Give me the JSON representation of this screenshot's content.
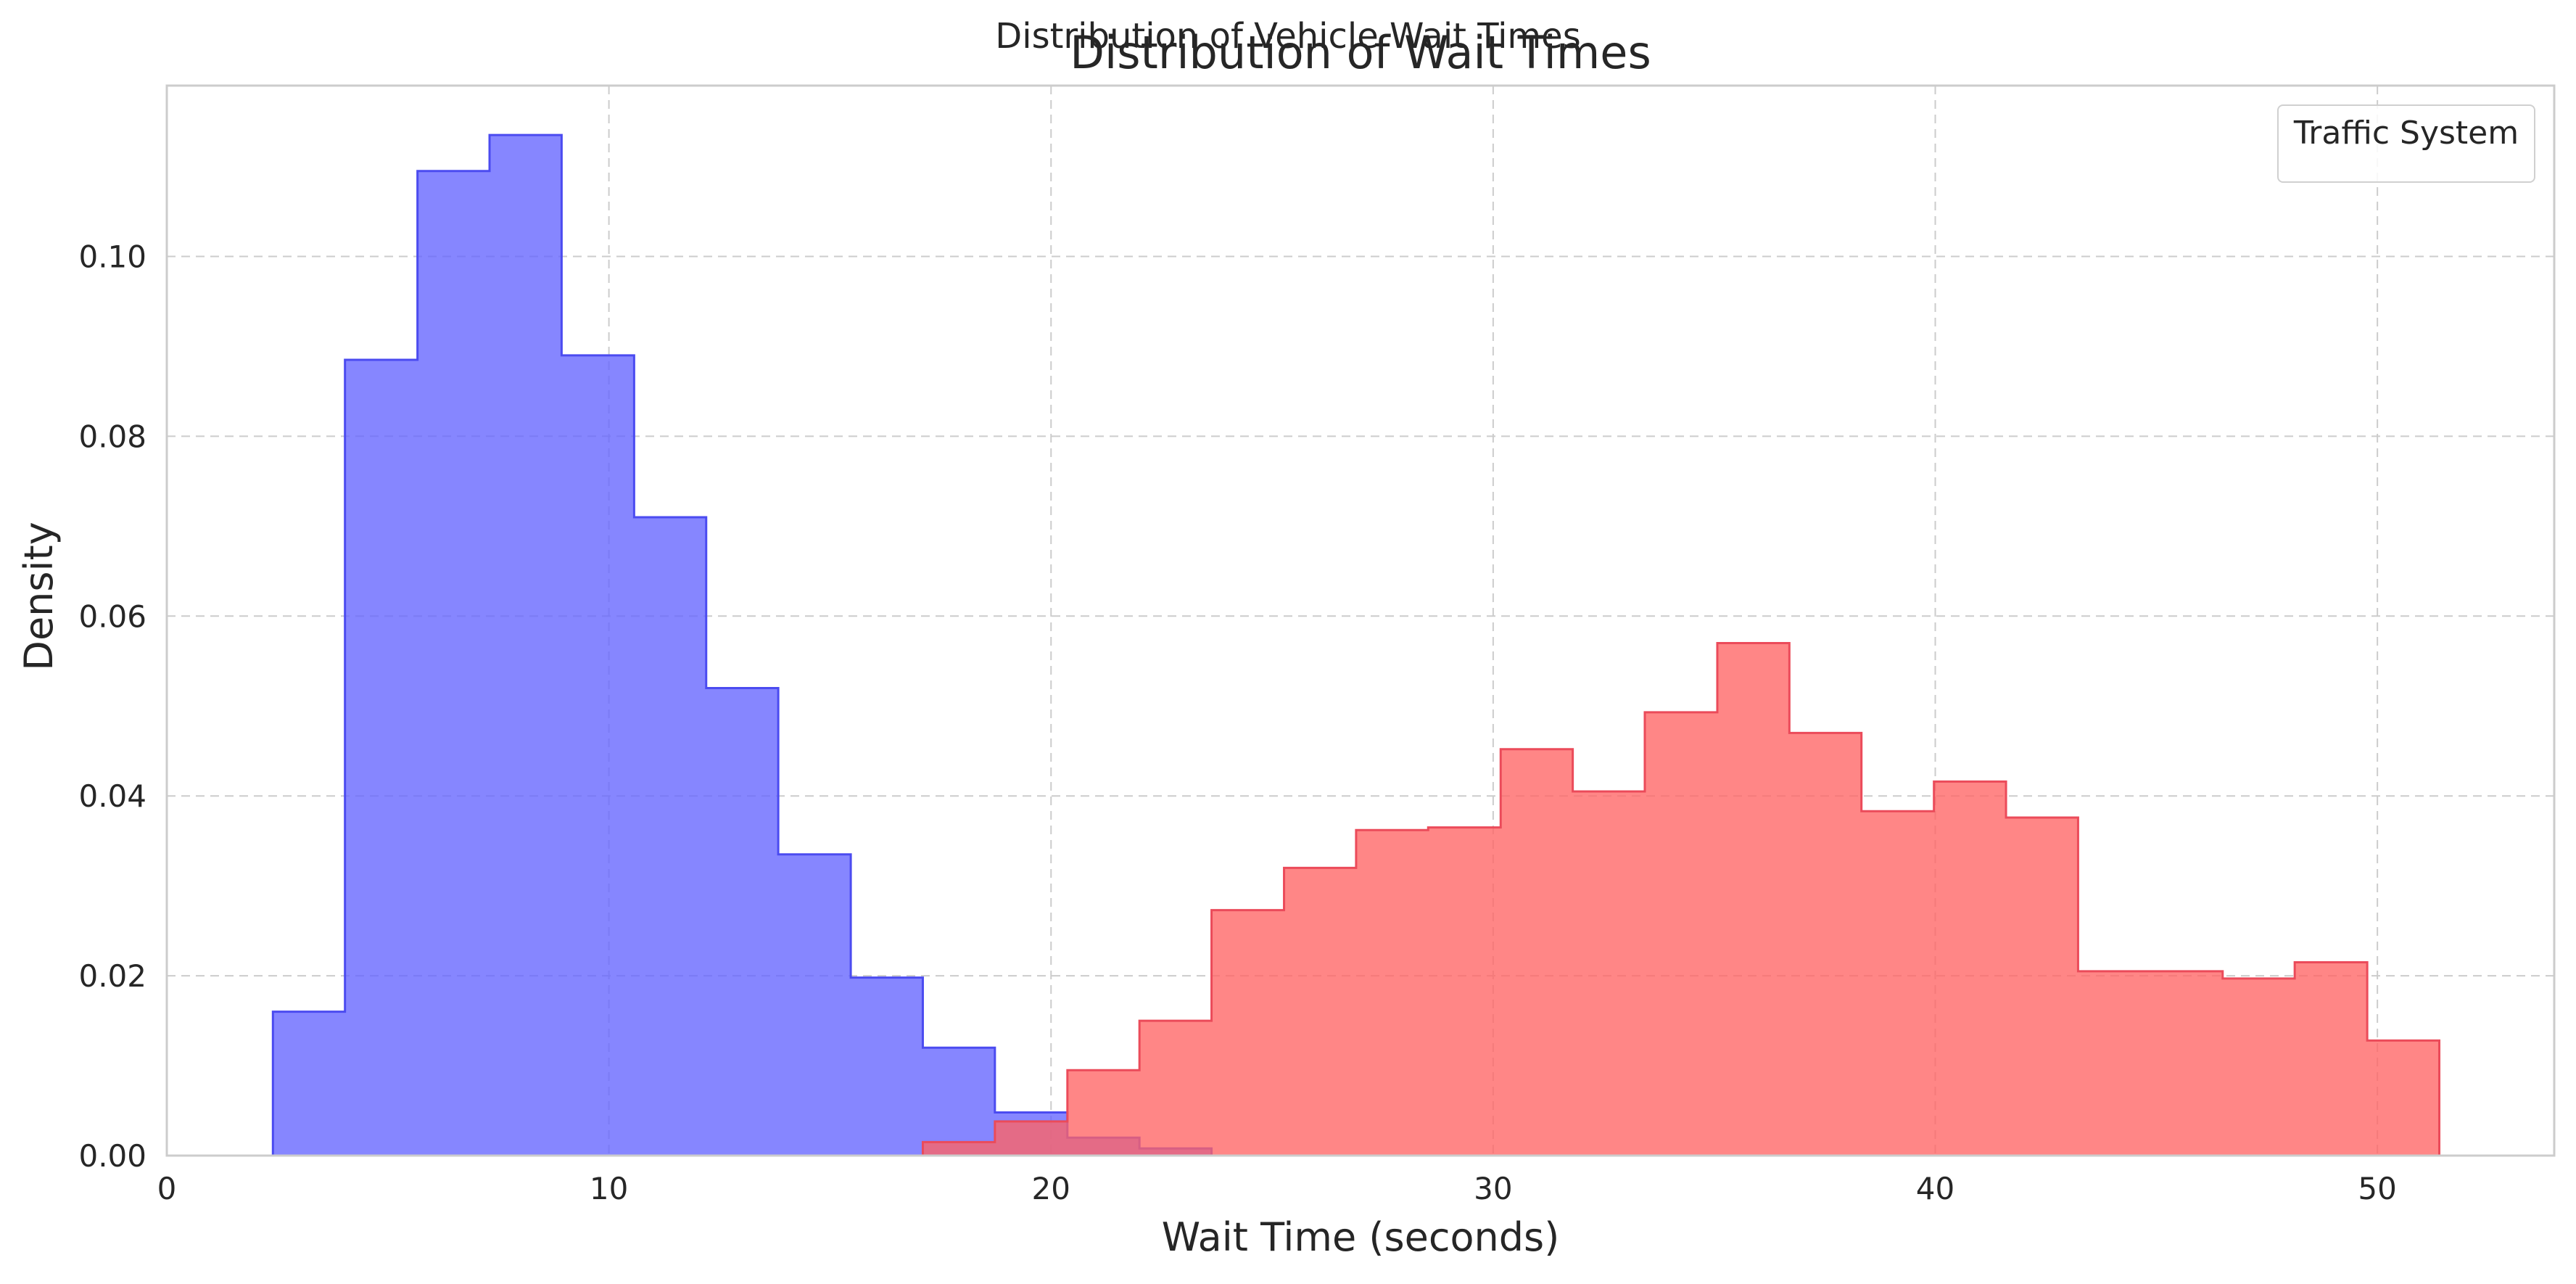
{
  "suptitle": "Distribution of Vehicle Wait Times",
  "chart_data": {
    "type": "histogram",
    "title": "Distribution of Wait Times",
    "xlabel": "Wait Time (seconds)",
    "ylabel": "Density",
    "xlim": [
      0,
      54
    ],
    "ylim": [
      0,
      0.119
    ],
    "xticks": [
      0,
      10,
      20,
      30,
      40,
      50
    ],
    "yticks": [
      0.0,
      0.02,
      0.04,
      0.06,
      0.08,
      0.1
    ],
    "grid": true,
    "legend": {
      "title": "Traffic System",
      "placement": "top-right"
    },
    "series": [
      {
        "color": "#6464ff",
        "edge_color": "#4b4bf0",
        "bin_edges": [
          2.4,
          4.03,
          5.67,
          7.3,
          8.93,
          10.57,
          12.2,
          13.83,
          15.47,
          17.1,
          18.73,
          20.37,
          22.0,
          23.63
        ],
        "values": [
          0.016,
          0.0885,
          0.1095,
          0.1135,
          0.089,
          0.071,
          0.052,
          0.0335,
          0.0198,
          0.012,
          0.0048,
          0.002,
          0.0008
        ]
      },
      {
        "color": "#ff6464",
        "edge_color": "#eb4b5a",
        "bin_edges": [
          17.1,
          18.73,
          20.37,
          22.0,
          23.63,
          25.27,
          26.9,
          28.53,
          30.17,
          31.8,
          33.43,
          35.07,
          36.7,
          38.33,
          39.97,
          41.6,
          43.23,
          44.87,
          46.5,
          48.13,
          49.77,
          51.4
        ],
        "values": [
          0.0015,
          0.0038,
          0.0095,
          0.015,
          0.0273,
          0.032,
          0.0362,
          0.0365,
          0.0452,
          0.0405,
          0.0493,
          0.057,
          0.047,
          0.0383,
          0.0416,
          0.0376,
          0.0205,
          0.0205,
          0.0197,
          0.0215,
          0.0128
        ]
      }
    ]
  }
}
